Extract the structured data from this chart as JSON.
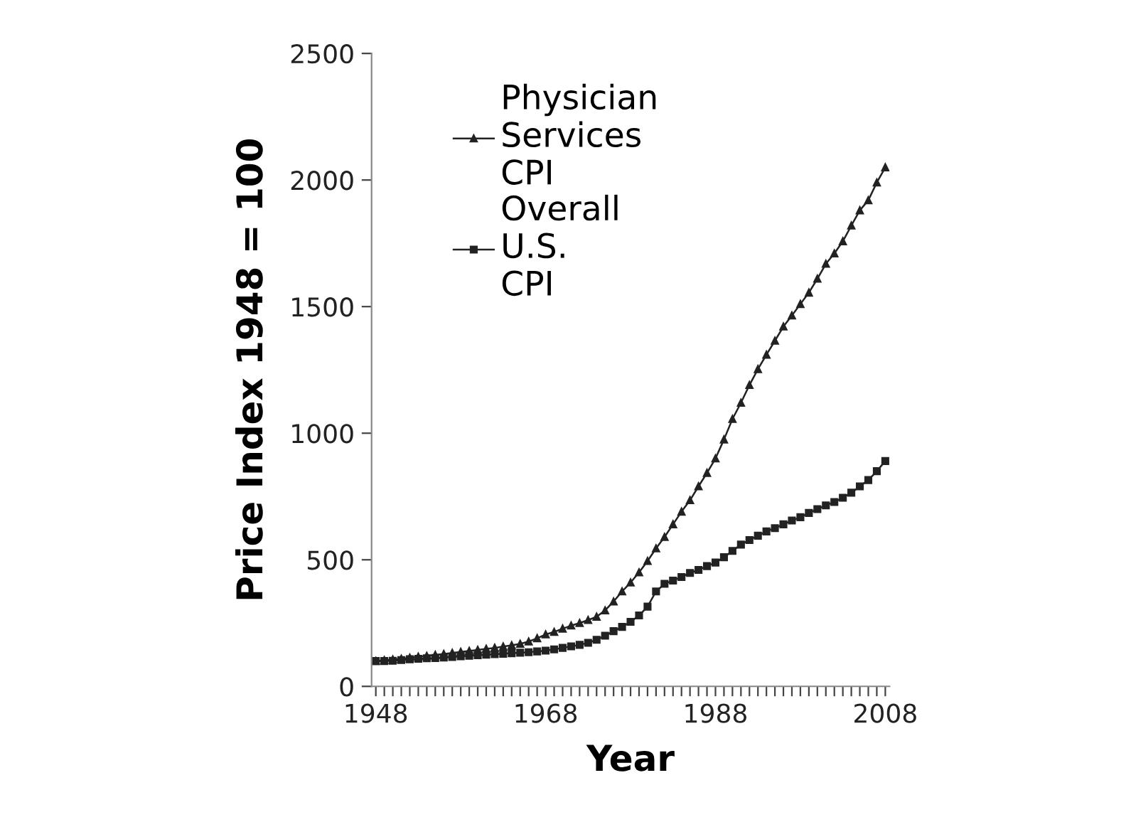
{
  "chart_data": {
    "type": "line",
    "xlabel": "Year",
    "ylabel": "Price Index 1948 = 100",
    "x": [
      1948,
      1949,
      1950,
      1951,
      1952,
      1953,
      1954,
      1955,
      1956,
      1957,
      1958,
      1959,
      1960,
      1961,
      1962,
      1963,
      1964,
      1965,
      1966,
      1967,
      1968,
      1969,
      1970,
      1971,
      1972,
      1973,
      1974,
      1975,
      1976,
      1977,
      1978,
      1979,
      1980,
      1981,
      1982,
      1983,
      1984,
      1985,
      1986,
      1987,
      1988,
      1989,
      1990,
      1991,
      1992,
      1993,
      1994,
      1995,
      1996,
      1997,
      1998,
      1999,
      2000,
      2001,
      2002,
      2003,
      2004,
      2005,
      2006,
      2007,
      2008
    ],
    "series": [
      {
        "name": "Physician Services CPI",
        "color": "#222222",
        "marker": "triangle",
        "values": [
          100,
          103,
          106,
          109,
          113,
          117,
          120,
          124,
          128,
          132,
          136,
          140,
          144,
          148,
          152,
          157,
          162,
          168,
          177,
          190,
          205,
          215,
          228,
          240,
          250,
          262,
          275,
          300,
          335,
          375,
          410,
          450,
          495,
          545,
          590,
          640,
          690,
          735,
          790,
          843,
          900,
          975,
          1056,
          1120,
          1190,
          1253,
          1310,
          1365,
          1421,
          1465,
          1510,
          1555,
          1610,
          1669,
          1710,
          1758,
          1820,
          1880,
          1920,
          1990,
          2050
        ]
      },
      {
        "name": "Overall U.S. CPI",
        "color": "#222222",
        "marker": "square",
        "values": [
          100,
          100,
          101,
          104,
          107,
          109,
          111,
          112,
          114,
          116,
          119,
          121,
          123,
          125,
          127,
          129,
          131,
          133,
          135,
          138,
          141,
          146,
          152,
          158,
          164,
          172,
          184,
          200,
          218,
          235,
          255,
          280,
          315,
          375,
          405,
          418,
          432,
          448,
          460,
          475,
          489,
          510,
          535,
          560,
          578,
          595,
          612,
          625,
          640,
          655,
          668,
          685,
          700,
          715,
          728,
          745,
          765,
          790,
          815,
          850,
          890
        ]
      }
    ],
    "xlim": [
      1947.5,
      2008.5
    ],
    "xticks": [
      1948,
      {
        "value": 1949,
        "label": null
      },
      {
        "value": 1950,
        "label": null
      },
      {
        "value": 1951,
        "label": null
      },
      {
        "value": 1952,
        "label": null
      },
      {
        "value": 1953,
        "label": null
      },
      {
        "value": 1954,
        "label": null
      },
      {
        "value": 1955,
        "label": null
      },
      {
        "value": 1956,
        "label": null
      },
      {
        "value": 1957,
        "label": null
      },
      {
        "value": 1958,
        "label": null
      },
      {
        "value": 1959,
        "label": null
      },
      {
        "value": 1960,
        "label": null
      },
      {
        "value": 1961,
        "label": null
      },
      {
        "value": 1962,
        "label": null
      },
      {
        "value": 1963,
        "label": null
      },
      {
        "value": 1964,
        "label": null
      },
      {
        "value": 1965,
        "label": null
      },
      {
        "value": 1966,
        "label": null
      },
      {
        "value": 1967,
        "label": null
      },
      1968,
      {
        "value": 1969,
        "label": null
      },
      {
        "value": 1970,
        "label": null
      },
      {
        "value": 1971,
        "label": null
      },
      {
        "value": 1972,
        "label": null
      },
      {
        "value": 1973,
        "label": null
      },
      {
        "value": 1974,
        "label": null
      },
      {
        "value": 1975,
        "label": null
      },
      {
        "value": 1976,
        "label": null
      },
      {
        "value": 1977,
        "label": null
      },
      {
        "value": 1978,
        "label": null
      },
      {
        "value": 1979,
        "label": null
      },
      {
        "value": 1980,
        "label": null
      },
      {
        "value": 1981,
        "label": null
      },
      {
        "value": 1982,
        "label": null
      },
      {
        "value": 1983,
        "label": null
      },
      {
        "value": 1984,
        "label": null
      },
      {
        "value": 1985,
        "label": null
      },
      {
        "value": 1986,
        "label": null
      },
      {
        "value": 1987,
        "label": null
      },
      1988,
      {
        "value": 1989,
        "label": null
      },
      {
        "value": 1990,
        "label": null
      },
      {
        "value": 1991,
        "label": null
      },
      {
        "value": 1992,
        "label": null
      },
      {
        "value": 1993,
        "label": null
      },
      {
        "value": 1994,
        "label": null
      },
      {
        "value": 1995,
        "label": null
      },
      {
        "value": 1996,
        "label": null
      },
      {
        "value": 1997,
        "label": null
      },
      {
        "value": 1998,
        "label": null
      },
      {
        "value": 1999,
        "label": null
      },
      {
        "value": 2000,
        "label": null
      },
      {
        "value": 2001,
        "label": null
      },
      {
        "value": 2002,
        "label": null
      },
      {
        "value": 2003,
        "label": null
      },
      {
        "value": 2004,
        "label": null
      },
      {
        "value": 2005,
        "label": null
      },
      {
        "value": 2006,
        "label": null
      },
      {
        "value": 2007,
        "label": null
      },
      2008
    ],
    "ylim": [
      0,
      2500
    ],
    "yticks": [
      0,
      500,
      1000,
      1500,
      2000,
      2500
    ],
    "grid": false,
    "legend": "top left",
    "line_style": "solid"
  }
}
